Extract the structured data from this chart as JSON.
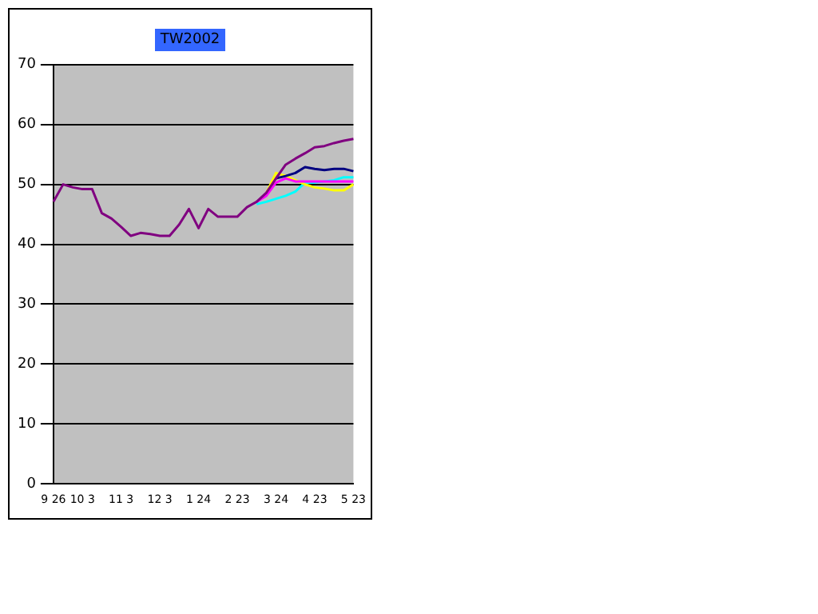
{
  "chart_data": {
    "type": "line",
    "title": "TW2002",
    "categories": [
      "9 26",
      null,
      null,
      "10 3",
      null,
      null,
      null,
      "11 3",
      null,
      null,
      null,
      "12 3",
      null,
      null,
      null,
      "1 24",
      null,
      null,
      null,
      "2 23",
      null,
      null,
      null,
      "3 24",
      null,
      null,
      null,
      "4 23",
      null,
      null,
      null,
      "5 23"
    ],
    "series": [
      {
        "color": "#800080",
        "values": [
          47.1,
          50,
          49.5,
          49.2,
          49.2,
          45.2,
          44.3,
          42.9,
          41.4,
          41.9,
          41.7,
          41.4,
          41.4,
          43.3,
          45.9,
          42.7,
          45.9,
          44.6,
          44.6,
          44.6,
          46.2,
          47.1,
          48.6,
          51,
          53.3,
          54.3,
          55.2,
          56.2,
          56.4,
          56.9,
          57.3,
          57.6
        ]
      },
      {
        "color": "#000080",
        "values": [
          null,
          null,
          null,
          null,
          null,
          null,
          null,
          null,
          null,
          null,
          null,
          null,
          null,
          null,
          null,
          null,
          null,
          null,
          null,
          null,
          null,
          null,
          null,
          51,
          51.4,
          51.9,
          52.9,
          52.6,
          52.4,
          52.6,
          52.6,
          52.2
        ]
      },
      {
        "color": "#ff00ff",
        "values": [
          null,
          null,
          null,
          null,
          null,
          null,
          null,
          null,
          null,
          null,
          null,
          null,
          null,
          null,
          null,
          null,
          null,
          null,
          null,
          null,
          null,
          47.1,
          48.1,
          50.3,
          51,
          50.5,
          50.5,
          50.5,
          50.5,
          50.5,
          50.5,
          50.5
        ]
      },
      {
        "color": "#ffff00",
        "values": [
          null,
          null,
          null,
          null,
          null,
          null,
          null,
          null,
          null,
          null,
          null,
          null,
          null,
          null,
          null,
          null,
          null,
          null,
          null,
          null,
          null,
          null,
          48.6,
          51.9,
          51.4,
          50.7,
          50,
          49.5,
          49.3,
          49,
          49,
          50
        ]
      },
      {
        "color": "#00ffff",
        "values": [
          null,
          null,
          null,
          null,
          null,
          null,
          null,
          null,
          null,
          null,
          null,
          null,
          null,
          null,
          null,
          null,
          null,
          null,
          null,
          null,
          null,
          46.7,
          47.1,
          47.6,
          48.1,
          48.8,
          50.3,
          50.3,
          50.5,
          50.7,
          51.2,
          51.2
        ]
      }
    ],
    "ylim": [
      0,
      70
    ],
    "yticks": [
      0,
      10,
      20,
      30,
      40,
      50,
      60,
      70
    ],
    "grid": "y",
    "legend": false,
    "marker": "none",
    "line_style": "solid"
  }
}
